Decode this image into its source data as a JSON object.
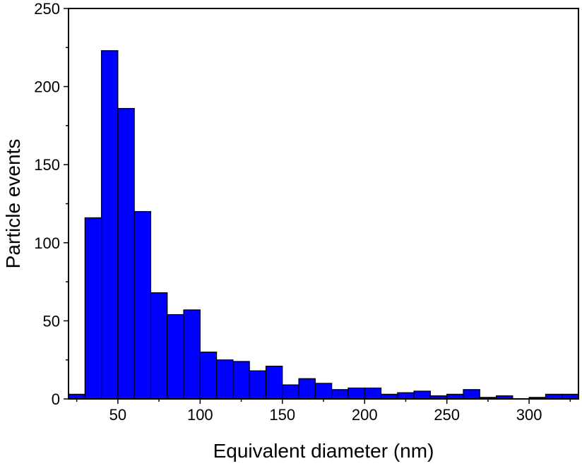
{
  "chart_data": {
    "type": "bar",
    "title": "",
    "xlabel": "Equivalent diameter (nm)",
    "ylabel": "Particle events",
    "xlim": [
      20,
      330
    ],
    "ylim": [
      0,
      250
    ],
    "bin_width": 10,
    "x_ticks": [
      50,
      100,
      150,
      200,
      250,
      300
    ],
    "x_tick_labels": [
      "50",
      "100",
      "150",
      "200",
      "250",
      "300"
    ],
    "y_ticks": [
      0,
      50,
      100,
      150,
      200,
      250
    ],
    "y_tick_labels": [
      "0",
      "50",
      "100",
      "150",
      "200",
      "250"
    ],
    "grid": false,
    "legend": "none",
    "bar_color": "#0000ff",
    "bar_edge_color": "#000000",
    "bins": [
      {
        "x0": 20,
        "x1": 30,
        "value": 3
      },
      {
        "x0": 30,
        "x1": 40,
        "value": 116
      },
      {
        "x0": 40,
        "x1": 50,
        "value": 223
      },
      {
        "x0": 50,
        "x1": 60,
        "value": 186
      },
      {
        "x0": 60,
        "x1": 70,
        "value": 120
      },
      {
        "x0": 70,
        "x1": 80,
        "value": 68
      },
      {
        "x0": 80,
        "x1": 90,
        "value": 54
      },
      {
        "x0": 90,
        "x1": 100,
        "value": 57
      },
      {
        "x0": 100,
        "x1": 110,
        "value": 30
      },
      {
        "x0": 110,
        "x1": 120,
        "value": 25
      },
      {
        "x0": 120,
        "x1": 130,
        "value": 24
      },
      {
        "x0": 130,
        "x1": 140,
        "value": 18
      },
      {
        "x0": 140,
        "x1": 150,
        "value": 21
      },
      {
        "x0": 150,
        "x1": 160,
        "value": 9
      },
      {
        "x0": 160,
        "x1": 170,
        "value": 13
      },
      {
        "x0": 170,
        "x1": 180,
        "value": 10
      },
      {
        "x0": 180,
        "x1": 190,
        "value": 6
      },
      {
        "x0": 190,
        "x1": 200,
        "value": 7
      },
      {
        "x0": 200,
        "x1": 210,
        "value": 7
      },
      {
        "x0": 210,
        "x1": 220,
        "value": 3
      },
      {
        "x0": 220,
        "x1": 230,
        "value": 4
      },
      {
        "x0": 230,
        "x1": 240,
        "value": 5
      },
      {
        "x0": 240,
        "x1": 250,
        "value": 2
      },
      {
        "x0": 250,
        "x1": 260,
        "value": 3
      },
      {
        "x0": 260,
        "x1": 270,
        "value": 6
      },
      {
        "x0": 270,
        "x1": 280,
        "value": 1
      },
      {
        "x0": 280,
        "x1": 290,
        "value": 2
      },
      {
        "x0": 290,
        "x1": 300,
        "value": 0
      },
      {
        "x0": 300,
        "x1": 310,
        "value": 1
      },
      {
        "x0": 310,
        "x1": 320,
        "value": 3
      },
      {
        "x0": 320,
        "x1": 330,
        "value": 3
      }
    ]
  }
}
